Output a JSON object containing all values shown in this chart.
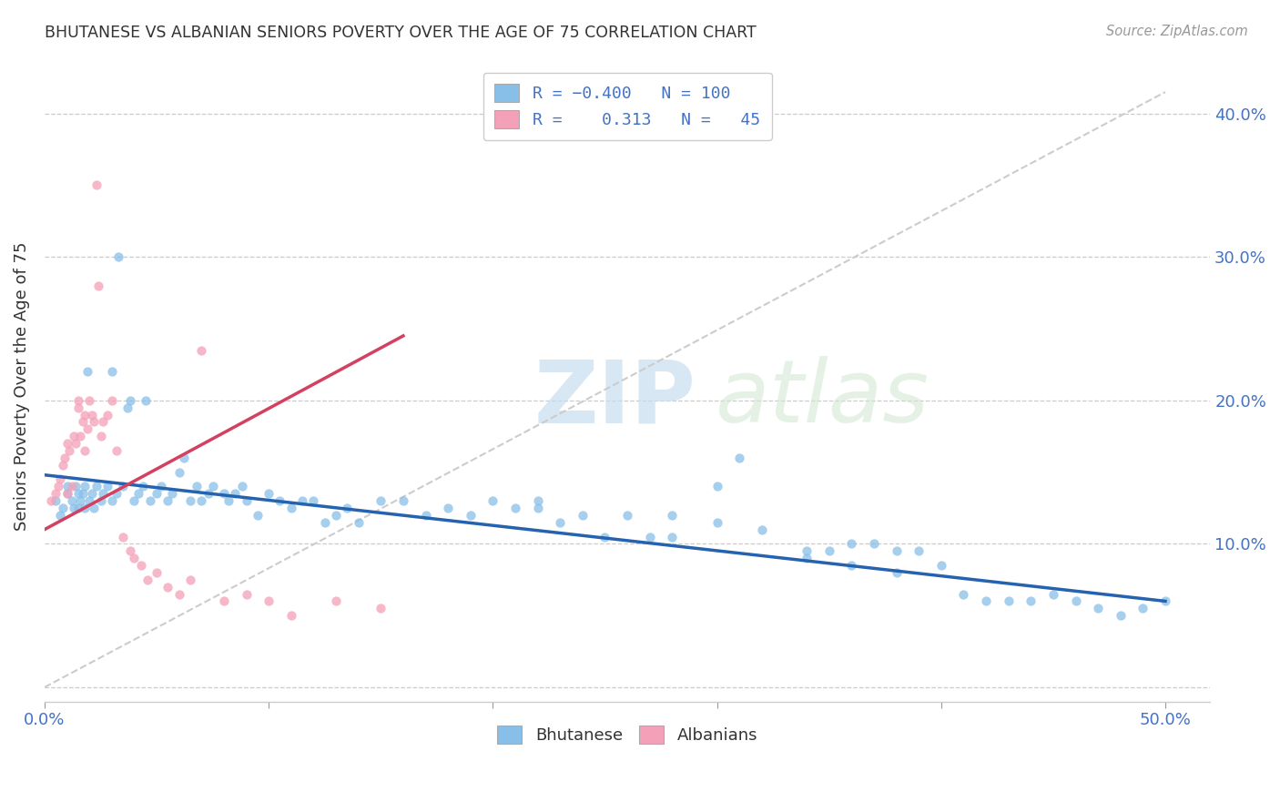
{
  "title": "BHUTANESE VS ALBANIAN SENIORS POVERTY OVER THE AGE OF 75 CORRELATION CHART",
  "source": "Source: ZipAtlas.com",
  "ylabel": "Seniors Poverty Over the Age of 75",
  "xlim": [
    0.0,
    0.52
  ],
  "ylim": [
    -0.01,
    0.43
  ],
  "legend_r_blue": "-0.400",
  "legend_n_blue": "100",
  "legend_r_pink": "0.313",
  "legend_n_pink": "45",
  "color_blue": "#88bfe8",
  "color_pink": "#f4a0b8",
  "color_blue_line": "#2563b0",
  "color_pink_line": "#d44060",
  "color_diag": "#cccccc",
  "blue_scatter_x": [
    0.005,
    0.007,
    0.008,
    0.01,
    0.01,
    0.012,
    0.013,
    0.014,
    0.015,
    0.015,
    0.016,
    0.017,
    0.018,
    0.018,
    0.019,
    0.02,
    0.021,
    0.022,
    0.023,
    0.025,
    0.026,
    0.028,
    0.03,
    0.03,
    0.032,
    0.033,
    0.035,
    0.037,
    0.038,
    0.04,
    0.042,
    0.044,
    0.045,
    0.047,
    0.05,
    0.052,
    0.055,
    0.057,
    0.06,
    0.062,
    0.065,
    0.068,
    0.07,
    0.073,
    0.075,
    0.08,
    0.082,
    0.085,
    0.088,
    0.09,
    0.095,
    0.1,
    0.105,
    0.11,
    0.115,
    0.12,
    0.125,
    0.13,
    0.135,
    0.14,
    0.15,
    0.16,
    0.17,
    0.18,
    0.19,
    0.2,
    0.21,
    0.22,
    0.23,
    0.24,
    0.25,
    0.26,
    0.27,
    0.28,
    0.3,
    0.31,
    0.32,
    0.34,
    0.35,
    0.36,
    0.37,
    0.38,
    0.39,
    0.4,
    0.41,
    0.42,
    0.43,
    0.44,
    0.45,
    0.46,
    0.47,
    0.48,
    0.49,
    0.5,
    0.34,
    0.36,
    0.28,
    0.3,
    0.38,
    0.22
  ],
  "blue_scatter_y": [
    0.13,
    0.12,
    0.125,
    0.135,
    0.14,
    0.13,
    0.125,
    0.14,
    0.135,
    0.125,
    0.13,
    0.135,
    0.14,
    0.125,
    0.22,
    0.13,
    0.135,
    0.125,
    0.14,
    0.13,
    0.135,
    0.14,
    0.22,
    0.13,
    0.135,
    0.3,
    0.14,
    0.195,
    0.2,
    0.13,
    0.135,
    0.14,
    0.2,
    0.13,
    0.135,
    0.14,
    0.13,
    0.135,
    0.15,
    0.16,
    0.13,
    0.14,
    0.13,
    0.135,
    0.14,
    0.135,
    0.13,
    0.135,
    0.14,
    0.13,
    0.12,
    0.135,
    0.13,
    0.125,
    0.13,
    0.13,
    0.115,
    0.12,
    0.125,
    0.115,
    0.13,
    0.13,
    0.12,
    0.125,
    0.12,
    0.13,
    0.125,
    0.13,
    0.115,
    0.12,
    0.105,
    0.12,
    0.105,
    0.12,
    0.14,
    0.16,
    0.11,
    0.095,
    0.095,
    0.1,
    0.1,
    0.095,
    0.095,
    0.085,
    0.065,
    0.06,
    0.06,
    0.06,
    0.065,
    0.06,
    0.055,
    0.05,
    0.055,
    0.06,
    0.09,
    0.085,
    0.105,
    0.115,
    0.08,
    0.125
  ],
  "pink_scatter_x": [
    0.003,
    0.005,
    0.006,
    0.007,
    0.008,
    0.009,
    0.01,
    0.01,
    0.011,
    0.012,
    0.013,
    0.014,
    0.015,
    0.015,
    0.016,
    0.017,
    0.018,
    0.018,
    0.019,
    0.02,
    0.021,
    0.022,
    0.023,
    0.024,
    0.025,
    0.026,
    0.028,
    0.03,
    0.032,
    0.035,
    0.038,
    0.04,
    0.043,
    0.046,
    0.05,
    0.055,
    0.06,
    0.065,
    0.07,
    0.08,
    0.09,
    0.1,
    0.11,
    0.13,
    0.15
  ],
  "pink_scatter_y": [
    0.13,
    0.135,
    0.14,
    0.145,
    0.155,
    0.16,
    0.135,
    0.17,
    0.165,
    0.14,
    0.175,
    0.17,
    0.2,
    0.195,
    0.175,
    0.185,
    0.19,
    0.165,
    0.18,
    0.2,
    0.19,
    0.185,
    0.35,
    0.28,
    0.175,
    0.185,
    0.19,
    0.2,
    0.165,
    0.105,
    0.095,
    0.09,
    0.085,
    0.075,
    0.08,
    0.07,
    0.065,
    0.075,
    0.235,
    0.06,
    0.065,
    0.06,
    0.05,
    0.06,
    0.055
  ],
  "blue_line_x": [
    0.0,
    0.5
  ],
  "blue_line_y": [
    0.148,
    0.06
  ],
  "pink_line_x": [
    0.0,
    0.16
  ],
  "pink_line_y": [
    0.11,
    0.245
  ],
  "diag_line_x": [
    0.0,
    0.5
  ],
  "diag_line_y": [
    0.0,
    0.415
  ],
  "ytick_positions": [
    0.0,
    0.1,
    0.2,
    0.3,
    0.4
  ],
  "ytick_labels_right": [
    "",
    "10.0%",
    "20.0%",
    "30.0%",
    "40.0%"
  ],
  "xtick_positions": [
    0.0,
    0.1,
    0.2,
    0.3,
    0.4,
    0.5
  ],
  "xtick_labels": [
    "0.0%",
    "",
    "",
    "",
    "",
    "50.0%"
  ]
}
